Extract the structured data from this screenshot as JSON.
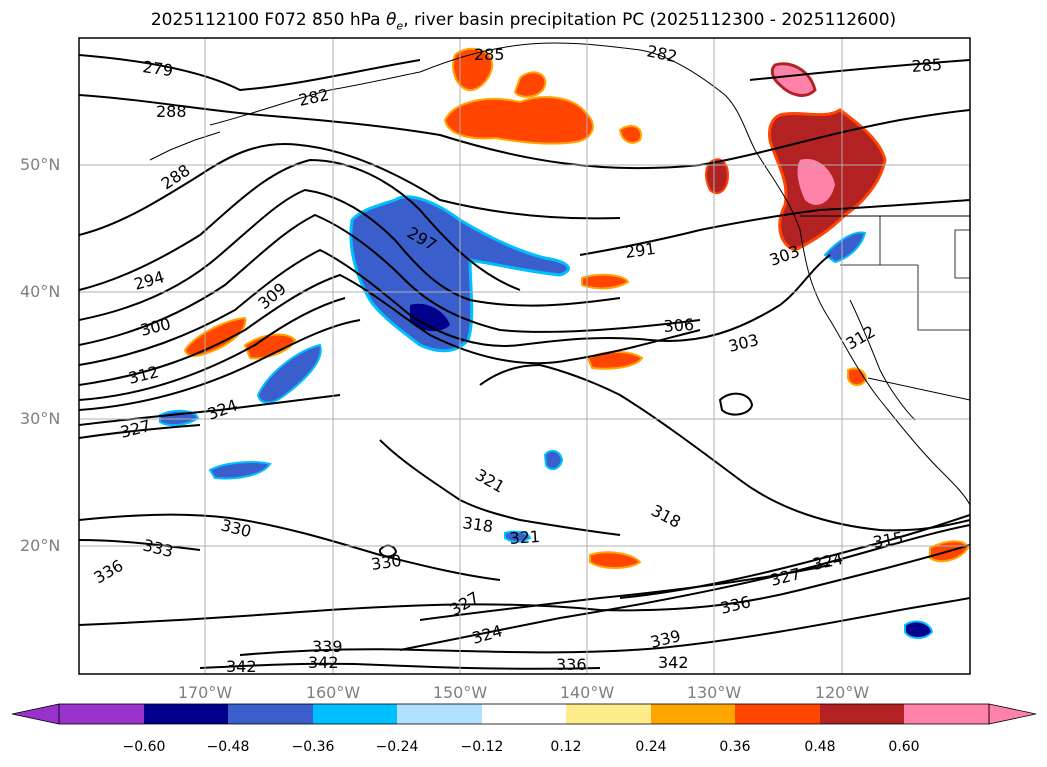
{
  "title_pre": "2025112100 F072 850 hPa ",
  "title_theta": "θ",
  "title_sub": "e",
  "title_post": ", river basin precipitation PC (2025112300 - 2025112600)",
  "lat_labels": [
    "50°N",
    "40°N",
    "30°N",
    "20°N"
  ],
  "lon_labels": [
    "170°W",
    "160°W",
    "150°W",
    "140°W",
    "130°W",
    "120°W"
  ],
  "colorbar": {
    "colors": [
      "#9932cc",
      "#00008b",
      "#3a5fcd",
      "#00bfff",
      "#b0e2ff",
      "#ffffff",
      "#ffec8b",
      "#ffa500",
      "#ff4500",
      "#b22222",
      "#ff82ab"
    ],
    "labels": [
      "−0.60",
      "−0.48",
      "−0.36",
      "−0.24",
      "−0.12",
      "0.12",
      "0.24",
      "0.36",
      "0.48",
      "0.60"
    ]
  },
  "contour_labels": [
    "279",
    "285",
    "282",
    "285",
    "288",
    "282",
    "288",
    "297",
    "291",
    "294",
    "309",
    "303",
    "300",
    "306",
    "303",
    "312",
    "324",
    "327",
    "312",
    "321",
    "318",
    "318",
    "330",
    "321",
    "333",
    "330",
    "315",
    "336",
    "327",
    "324",
    "327",
    "336",
    "324",
    "339",
    "339",
    "342",
    "342",
    "342",
    "336"
  ],
  "colors": {
    "contour": "#000000",
    "grid": "#b0b0b0",
    "land_outline": "#000000",
    "axis_label": "#7f7f7f"
  }
}
